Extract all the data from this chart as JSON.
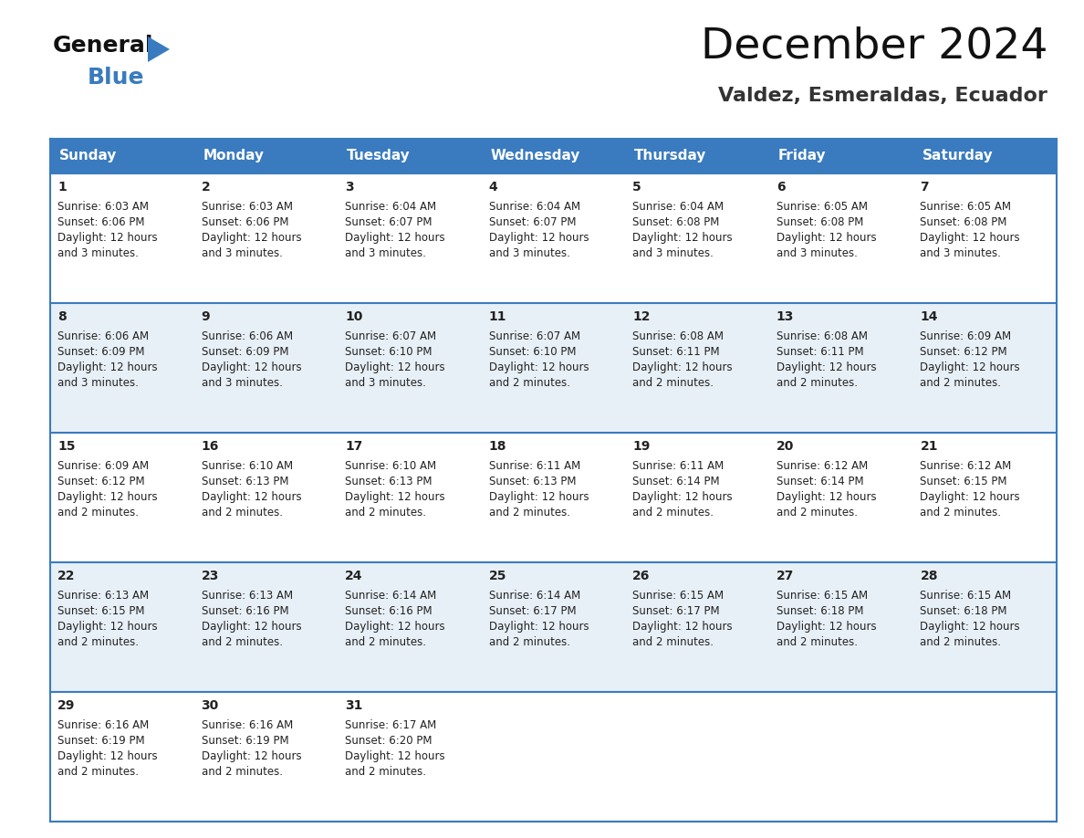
{
  "title": "December 2024",
  "subtitle": "Valdez, Esmeraldas, Ecuador",
  "header_color": "#3a7bbf",
  "header_text_color": "#ffffff",
  "days_of_week": [
    "Sunday",
    "Monday",
    "Tuesday",
    "Wednesday",
    "Thursday",
    "Friday",
    "Saturday"
  ],
  "cell_bg_even": "#ffffff",
  "cell_bg_odd": "#e8f0f7",
  "row_line_color": "#3a7bbf",
  "text_color": "#222222",
  "calendar_data": [
    {
      "day": 1,
      "col": 0,
      "row": 0,
      "sunrise": "6:03 AM",
      "sunset": "6:06 PM",
      "daylight": "12 hours and 3 minutes."
    },
    {
      "day": 2,
      "col": 1,
      "row": 0,
      "sunrise": "6:03 AM",
      "sunset": "6:06 PM",
      "daylight": "12 hours and 3 minutes."
    },
    {
      "day": 3,
      "col": 2,
      "row": 0,
      "sunrise": "6:04 AM",
      "sunset": "6:07 PM",
      "daylight": "12 hours and 3 minutes."
    },
    {
      "day": 4,
      "col": 3,
      "row": 0,
      "sunrise": "6:04 AM",
      "sunset": "6:07 PM",
      "daylight": "12 hours and 3 minutes."
    },
    {
      "day": 5,
      "col": 4,
      "row": 0,
      "sunrise": "6:04 AM",
      "sunset": "6:08 PM",
      "daylight": "12 hours and 3 minutes."
    },
    {
      "day": 6,
      "col": 5,
      "row": 0,
      "sunrise": "6:05 AM",
      "sunset": "6:08 PM",
      "daylight": "12 hours and 3 minutes."
    },
    {
      "day": 7,
      "col": 6,
      "row": 0,
      "sunrise": "6:05 AM",
      "sunset": "6:08 PM",
      "daylight": "12 hours and 3 minutes."
    },
    {
      "day": 8,
      "col": 0,
      "row": 1,
      "sunrise": "6:06 AM",
      "sunset": "6:09 PM",
      "daylight": "12 hours and 3 minutes."
    },
    {
      "day": 9,
      "col": 1,
      "row": 1,
      "sunrise": "6:06 AM",
      "sunset": "6:09 PM",
      "daylight": "12 hours and 3 minutes."
    },
    {
      "day": 10,
      "col": 2,
      "row": 1,
      "sunrise": "6:07 AM",
      "sunset": "6:10 PM",
      "daylight": "12 hours and 3 minutes."
    },
    {
      "day": 11,
      "col": 3,
      "row": 1,
      "sunrise": "6:07 AM",
      "sunset": "6:10 PM",
      "daylight": "12 hours and 2 minutes."
    },
    {
      "day": 12,
      "col": 4,
      "row": 1,
      "sunrise": "6:08 AM",
      "sunset": "6:11 PM",
      "daylight": "12 hours and 2 minutes."
    },
    {
      "day": 13,
      "col": 5,
      "row": 1,
      "sunrise": "6:08 AM",
      "sunset": "6:11 PM",
      "daylight": "12 hours and 2 minutes."
    },
    {
      "day": 14,
      "col": 6,
      "row": 1,
      "sunrise": "6:09 AM",
      "sunset": "6:12 PM",
      "daylight": "12 hours and 2 minutes."
    },
    {
      "day": 15,
      "col": 0,
      "row": 2,
      "sunrise": "6:09 AM",
      "sunset": "6:12 PM",
      "daylight": "12 hours and 2 minutes."
    },
    {
      "day": 16,
      "col": 1,
      "row": 2,
      "sunrise": "6:10 AM",
      "sunset": "6:13 PM",
      "daylight": "12 hours and 2 minutes."
    },
    {
      "day": 17,
      "col": 2,
      "row": 2,
      "sunrise": "6:10 AM",
      "sunset": "6:13 PM",
      "daylight": "12 hours and 2 minutes."
    },
    {
      "day": 18,
      "col": 3,
      "row": 2,
      "sunrise": "6:11 AM",
      "sunset": "6:13 PM",
      "daylight": "12 hours and 2 minutes."
    },
    {
      "day": 19,
      "col": 4,
      "row": 2,
      "sunrise": "6:11 AM",
      "sunset": "6:14 PM",
      "daylight": "12 hours and 2 minutes."
    },
    {
      "day": 20,
      "col": 5,
      "row": 2,
      "sunrise": "6:12 AM",
      "sunset": "6:14 PM",
      "daylight": "12 hours and 2 minutes."
    },
    {
      "day": 21,
      "col": 6,
      "row": 2,
      "sunrise": "6:12 AM",
      "sunset": "6:15 PM",
      "daylight": "12 hours and 2 minutes."
    },
    {
      "day": 22,
      "col": 0,
      "row": 3,
      "sunrise": "6:13 AM",
      "sunset": "6:15 PM",
      "daylight": "12 hours and 2 minutes."
    },
    {
      "day": 23,
      "col": 1,
      "row": 3,
      "sunrise": "6:13 AM",
      "sunset": "6:16 PM",
      "daylight": "12 hours and 2 minutes."
    },
    {
      "day": 24,
      "col": 2,
      "row": 3,
      "sunrise": "6:14 AM",
      "sunset": "6:16 PM",
      "daylight": "12 hours and 2 minutes."
    },
    {
      "day": 25,
      "col": 3,
      "row": 3,
      "sunrise": "6:14 AM",
      "sunset": "6:17 PM",
      "daylight": "12 hours and 2 minutes."
    },
    {
      "day": 26,
      "col": 4,
      "row": 3,
      "sunrise": "6:15 AM",
      "sunset": "6:17 PM",
      "daylight": "12 hours and 2 minutes."
    },
    {
      "day": 27,
      "col": 5,
      "row": 3,
      "sunrise": "6:15 AM",
      "sunset": "6:18 PM",
      "daylight": "12 hours and 2 minutes."
    },
    {
      "day": 28,
      "col": 6,
      "row": 3,
      "sunrise": "6:15 AM",
      "sunset": "6:18 PM",
      "daylight": "12 hours and 2 minutes."
    },
    {
      "day": 29,
      "col": 0,
      "row": 4,
      "sunrise": "6:16 AM",
      "sunset": "6:19 PM",
      "daylight": "12 hours and 2 minutes."
    },
    {
      "day": 30,
      "col": 1,
      "row": 4,
      "sunrise": "6:16 AM",
      "sunset": "6:19 PM",
      "daylight": "12 hours and 2 minutes."
    },
    {
      "day": 31,
      "col": 2,
      "row": 4,
      "sunrise": "6:17 AM",
      "sunset": "6:20 PM",
      "daylight": "12 hours and 2 minutes."
    }
  ],
  "num_rows": 5,
  "num_cols": 7,
  "logo_text_general": "General",
  "logo_text_blue": "Blue",
  "logo_triangle_color": "#3a7bbf",
  "title_fontsize": 34,
  "subtitle_fontsize": 16,
  "header_fontsize": 11,
  "day_num_fontsize": 10,
  "cell_text_fontsize": 8.5
}
